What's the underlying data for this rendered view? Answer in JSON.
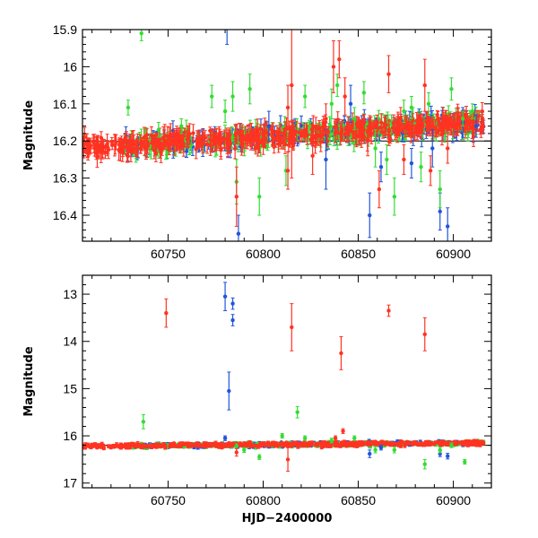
{
  "chart_data": [
    {
      "type": "scatter",
      "panel": "top",
      "title": "",
      "xlabel": "",
      "ylabel": "Magnitude",
      "xlim": [
        60705,
        60920
      ],
      "ylim": [
        16.47,
        15.9
      ],
      "y_inverted": true,
      "x_ticks": [
        60750,
        60800,
        60850,
        60900
      ],
      "x_tick_labels": [
        "60750",
        "60800",
        "60850",
        "60900"
      ],
      "y_ticks": [
        15.9,
        16,
        16.1,
        16.2,
        16.3,
        16.4
      ],
      "y_tick_labels": [
        "15.9",
        "16",
        "16.1",
        "16.2",
        "16.3",
        "16.4"
      ],
      "reference_line": 16.2,
      "grid": false,
      "series": [
        {
          "color": "#2255dd",
          "points": [
            {
              "x": 60781,
              "y": 15.88,
              "err": 0.06
            },
            {
              "x": 60787,
              "y": 16.45,
              "err": 0.05
            },
            {
              "x": 60803,
              "y": 16.16,
              "err": 0.04
            },
            {
              "x": 60833,
              "y": 16.25,
              "err": 0.08
            },
            {
              "x": 60846,
              "y": 16.1,
              "err": 0.05
            },
            {
              "x": 60856,
              "y": 16.4,
              "err": 0.06
            },
            {
              "x": 60862,
              "y": 16.27,
              "err": 0.04
            },
            {
              "x": 60878,
              "y": 16.26,
              "err": 0.04
            },
            {
              "x": 60889,
              "y": 16.22,
              "err": 0.05
            },
            {
              "x": 60893,
              "y": 16.39,
              "err": 0.05
            },
            {
              "x": 60897,
              "y": 16.43,
              "err": 0.05
            },
            {
              "x": 60905,
              "y": 16.15,
              "err": 0.04
            },
            {
              "x": 60912,
              "y": 16.16,
              "err": 0.03
            }
          ]
        },
        {
          "color": "#33dd33",
          "points": [
            {
              "x": 60729,
              "y": 16.11,
              "err": 0.02
            },
            {
              "x": 60736,
              "y": 15.91,
              "err": 0.02
            },
            {
              "x": 60745,
              "y": 16.17,
              "err": 0.02
            },
            {
              "x": 60757,
              "y": 16.16,
              "err": 0.02
            },
            {
              "x": 60773,
              "y": 16.08,
              "err": 0.03
            },
            {
              "x": 60780,
              "y": 16.12,
              "err": 0.03
            },
            {
              "x": 60784,
              "y": 16.08,
              "err": 0.04
            },
            {
              "x": 60786,
              "y": 16.31,
              "err": 0.06
            },
            {
              "x": 60793,
              "y": 16.06,
              "err": 0.04
            },
            {
              "x": 60798,
              "y": 16.35,
              "err": 0.05
            },
            {
              "x": 60812,
              "y": 16.28,
              "err": 0.04
            },
            {
              "x": 60822,
              "y": 16.08,
              "err": 0.03
            },
            {
              "x": 60836,
              "y": 16.1,
              "err": 0.04
            },
            {
              "x": 60839,
              "y": 16.05,
              "err": 0.03
            },
            {
              "x": 60848,
              "y": 16.14,
              "err": 0.03
            },
            {
              "x": 60853,
              "y": 16.07,
              "err": 0.03
            },
            {
              "x": 60859,
              "y": 16.22,
              "err": 0.05
            },
            {
              "x": 60865,
              "y": 16.25,
              "err": 0.04
            },
            {
              "x": 60869,
              "y": 16.35,
              "err": 0.05
            },
            {
              "x": 60874,
              "y": 16.12,
              "err": 0.03
            },
            {
              "x": 60878,
              "y": 16.11,
              "err": 0.03
            },
            {
              "x": 60883,
              "y": 16.27,
              "err": 0.04
            },
            {
              "x": 60887,
              "y": 16.1,
              "err": 0.03
            },
            {
              "x": 60893,
              "y": 16.33,
              "err": 0.05
            },
            {
              "x": 60899,
              "y": 16.06,
              "err": 0.03
            },
            {
              "x": 60905,
              "y": 16.14,
              "err": 0.02
            },
            {
              "x": 60910,
              "y": 16.12,
              "err": 0.02
            }
          ]
        },
        {
          "color": "#ff3322",
          "points": [
            {
              "x": 60786,
              "y": 16.35,
              "err": 0.08
            },
            {
              "x": 60813,
              "y": 16.11,
              "err": 0.06
            },
            {
              "x": 60813,
              "y": 16.28,
              "err": 0.05
            },
            {
              "x": 60815,
              "y": 16.05,
              "err": 0.25
            },
            {
              "x": 60826,
              "y": 16.24,
              "err": 0.05
            },
            {
              "x": 60833,
              "y": 16.14,
              "err": 0.04
            },
            {
              "x": 60837,
              "y": 16.0,
              "err": 0.07
            },
            {
              "x": 60840,
              "y": 15.98,
              "err": 0.05
            },
            {
              "x": 60843,
              "y": 16.08,
              "err": 0.05
            },
            {
              "x": 60855,
              "y": 16.2,
              "err": 0.04
            },
            {
              "x": 60861,
              "y": 16.33,
              "err": 0.05
            },
            {
              "x": 60866,
              "y": 16.02,
              "err": 0.05
            },
            {
              "x": 60874,
              "y": 16.25,
              "err": 0.04
            },
            {
              "x": 60885,
              "y": 16.05,
              "err": 0.07
            },
            {
              "x": 60888,
              "y": 16.28,
              "err": 0.04
            },
            {
              "x": 60897,
              "y": 16.22,
              "err": 0.04
            }
          ]
        }
      ],
      "dense_band": {
        "x_range": [
          60705,
          60916
        ],
        "center_start": 16.22,
        "center_end": 16.15,
        "scatter": 0.025
      }
    },
    {
      "type": "scatter",
      "panel": "bottom",
      "title": "",
      "xlabel": "HJD−2400000",
      "ylabel": "Magnitude",
      "xlim": [
        60705,
        60920
      ],
      "ylim": [
        17.1,
        12.6
      ],
      "y_inverted": true,
      "x_ticks": [
        60750,
        60800,
        60850,
        60900
      ],
      "x_tick_labels": [
        "60750",
        "60800",
        "60850",
        "60900"
      ],
      "y_ticks": [
        13,
        14,
        15,
        16,
        17
      ],
      "y_tick_labels": [
        "13",
        "14",
        "15",
        "16",
        "17"
      ],
      "reference_line": 16.2,
      "grid": false,
      "series": [
        {
          "color": "#2255dd",
          "points": [
            {
              "x": 60780,
              "y": 13.05,
              "err": 0.3
            },
            {
              "x": 60782,
              "y": 15.05,
              "err": 0.4
            },
            {
              "x": 60784,
              "y": 13.2,
              "err": 0.12
            },
            {
              "x": 60784,
              "y": 13.55,
              "err": 0.12
            },
            {
              "x": 60780,
              "y": 16.05,
              "err": 0.05
            },
            {
              "x": 60856,
              "y": 16.38,
              "err": 0.08
            },
            {
              "x": 60862,
              "y": 16.25,
              "err": 0.05
            },
            {
              "x": 60893,
              "y": 16.38,
              "err": 0.06
            },
            {
              "x": 60897,
              "y": 16.43,
              "err": 0.06
            }
          ]
        },
        {
          "color": "#33dd33",
          "points": [
            {
              "x": 60737,
              "y": 15.7,
              "err": 0.15
            },
            {
              "x": 60786,
              "y": 16.22,
              "err": 0.05
            },
            {
              "x": 60790,
              "y": 16.3,
              "err": 0.05
            },
            {
              "x": 60798,
              "y": 16.45,
              "err": 0.05
            },
            {
              "x": 60810,
              "y": 16.0,
              "err": 0.05
            },
            {
              "x": 60818,
              "y": 15.5,
              "err": 0.12
            },
            {
              "x": 60822,
              "y": 16.05,
              "err": 0.05
            },
            {
              "x": 60836,
              "y": 16.1,
              "err": 0.05
            },
            {
              "x": 60848,
              "y": 16.05,
              "err": 0.05
            },
            {
              "x": 60859,
              "y": 16.3,
              "err": 0.06
            },
            {
              "x": 60869,
              "y": 16.3,
              "err": 0.06
            },
            {
              "x": 60885,
              "y": 16.6,
              "err": 0.1
            },
            {
              "x": 60893,
              "y": 16.3,
              "err": 0.06
            },
            {
              "x": 60899,
              "y": 16.2,
              "err": 0.05
            },
            {
              "x": 60906,
              "y": 16.55,
              "err": 0.05
            }
          ]
        },
        {
          "color": "#ff3322",
          "points": [
            {
              "x": 60749,
              "y": 13.4,
              "err": 0.3
            },
            {
              "x": 60815,
              "y": 13.7,
              "err": 0.5
            },
            {
              "x": 60841,
              "y": 14.25,
              "err": 0.35
            },
            {
              "x": 60842,
              "y": 15.9,
              "err": 0.05
            },
            {
              "x": 60866,
              "y": 13.35,
              "err": 0.12
            },
            {
              "x": 60885,
              "y": 13.85,
              "err": 0.35
            },
            {
              "x": 60813,
              "y": 16.5,
              "err": 0.25
            },
            {
              "x": 60838,
              "y": 16.05,
              "err": 0.05
            },
            {
              "x": 60786,
              "y": 16.35,
              "err": 0.08
            }
          ]
        }
      ],
      "dense_band": {
        "x_range": [
          60705,
          60916
        ],
        "center_start": 16.22,
        "center_end": 16.15,
        "scatter": 0.04
      }
    }
  ]
}
